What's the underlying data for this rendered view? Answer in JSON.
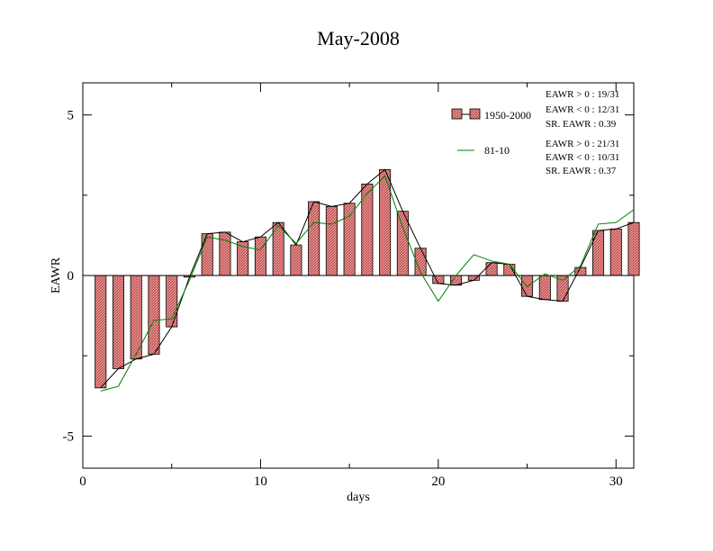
{
  "chart_data": {
    "type": "bar",
    "title": "May-2008",
    "xlabel": "days",
    "ylabel": "EAWR",
    "xlim": [
      0,
      31
    ],
    "ylim": [
      -6,
      6
    ],
    "xticks": [
      0,
      10,
      20,
      30
    ],
    "yticks": [
      -5,
      0,
      5
    ],
    "colors": {
      "bar_fill": "#e59a9a",
      "bar_hatch": "#b03030",
      "bar_line": "#000000",
      "series2": "#008000",
      "axis": "#000000"
    },
    "x": [
      1,
      2,
      3,
      4,
      5,
      6,
      7,
      8,
      9,
      10,
      11,
      12,
      13,
      14,
      15,
      16,
      17,
      18,
      19,
      20,
      21,
      22,
      23,
      24,
      25,
      26,
      27,
      28,
      29,
      30,
      31
    ],
    "series": [
      {
        "name": "1950-2000",
        "kind": "bar+line",
        "values": [
          -3.5,
          -2.9,
          -2.6,
          -2.45,
          -1.6,
          -0.05,
          1.3,
          1.35,
          1.05,
          1.2,
          1.65,
          0.95,
          2.3,
          2.15,
          2.25,
          2.85,
          3.3,
          2.0,
          0.85,
          -0.25,
          -0.3,
          -0.15,
          0.4,
          0.35,
          -0.65,
          -0.75,
          -0.8,
          0.25,
          1.4,
          1.45,
          1.65
        ]
      },
      {
        "name": "81-10",
        "kind": "line",
        "values": [
          -3.6,
          -3.45,
          -2.45,
          -1.4,
          -1.35,
          -0.15,
          1.2,
          1.1,
          0.9,
          0.8,
          1.55,
          1.0,
          1.65,
          1.6,
          1.85,
          2.55,
          3.1,
          1.5,
          0.1,
          -0.8,
          0.0,
          0.65,
          0.45,
          0.35,
          -0.35,
          0.05,
          -0.15,
          0.3,
          1.6,
          1.65,
          2.05
        ]
      }
    ],
    "legend": {
      "placement": "top-right",
      "stats": [
        [
          "EAWR > 0 : 19/31",
          "EAWR < 0 : 12/31",
          "SR. EAWR :  0.39"
        ],
        [
          "EAWR > 0 : 21/31",
          "EAWR < 0 : 10/31",
          "SR. EAWR :  0.37"
        ]
      ]
    }
  }
}
